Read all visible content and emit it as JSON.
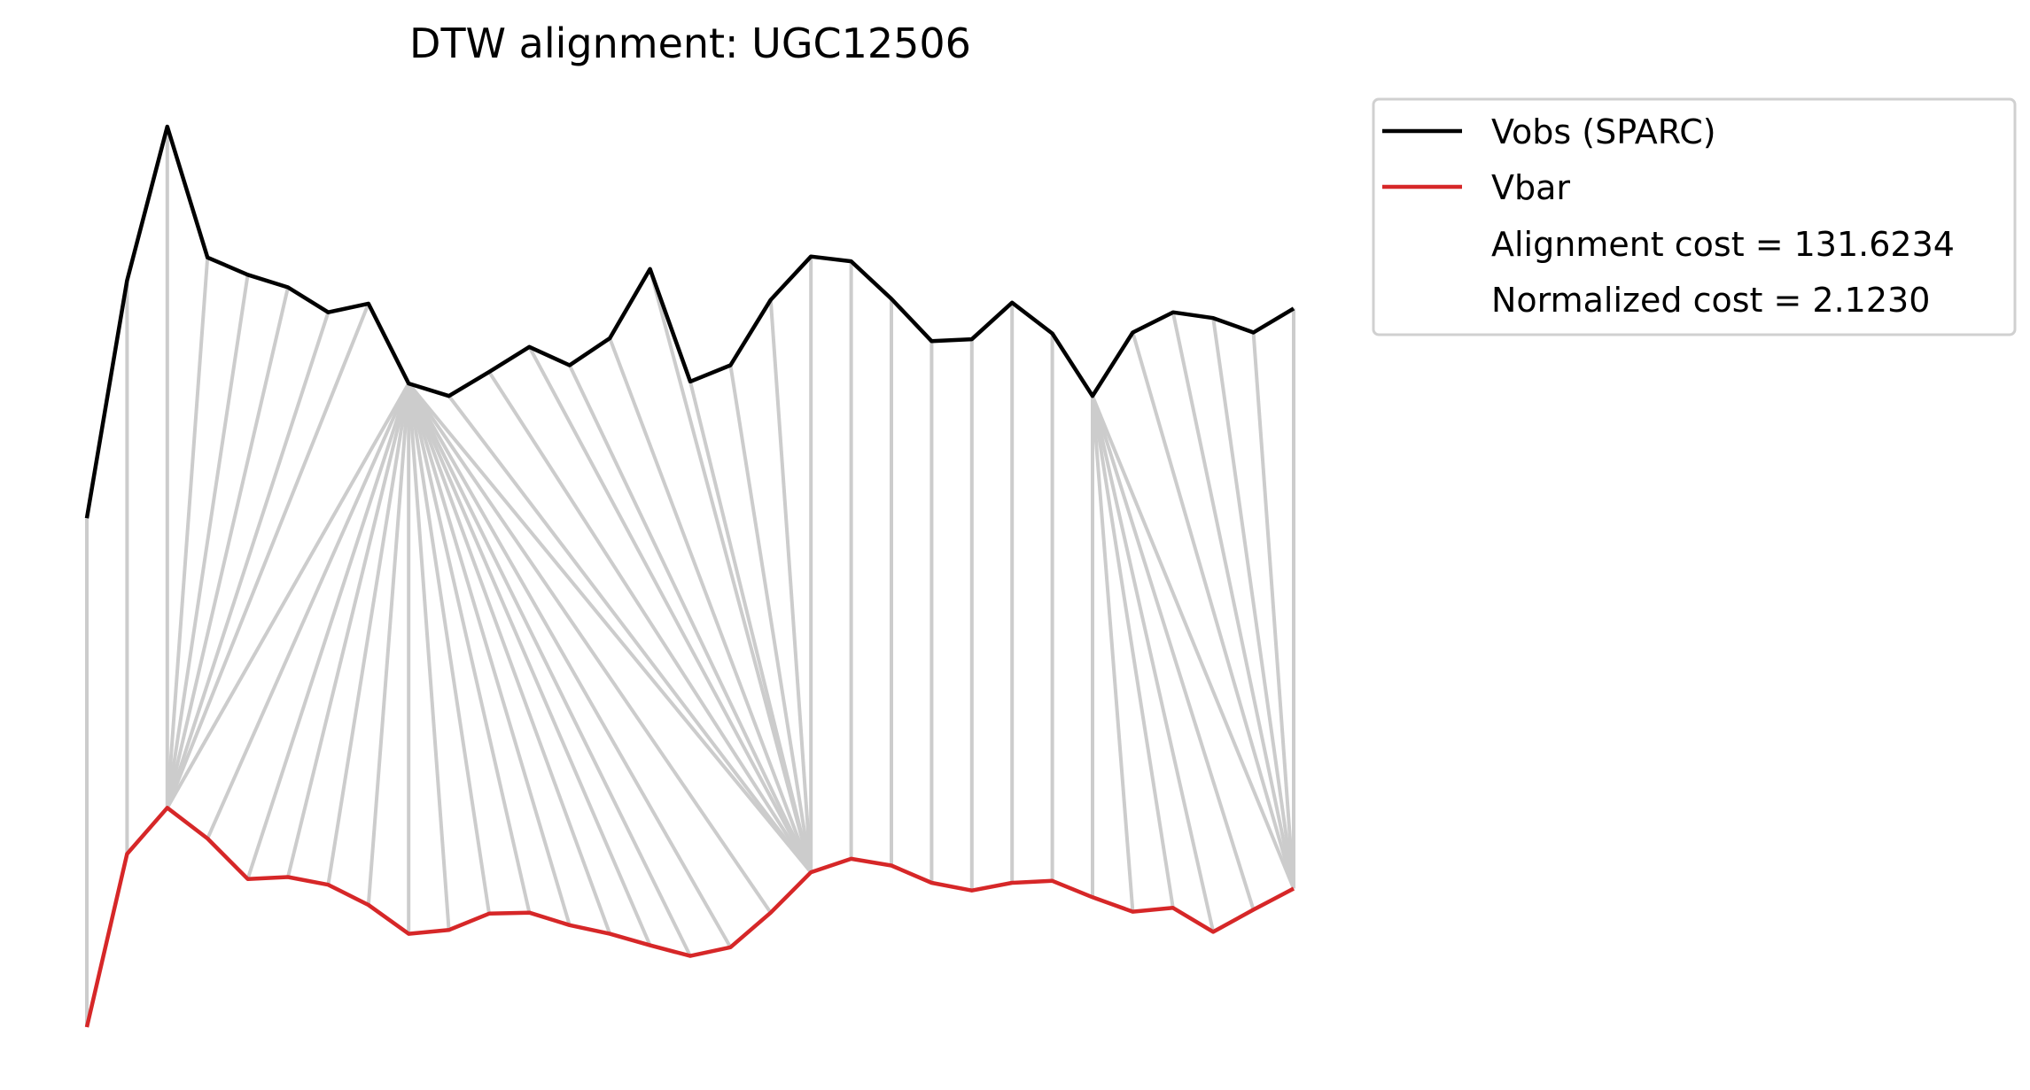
{
  "title": "DTW alignment: UGC12506",
  "legend": {
    "entries": [
      {
        "label": "Vobs (SPARC)",
        "color": "#000000",
        "has_line": true
      },
      {
        "label": "Vbar",
        "color": "#d62728",
        "has_line": true
      },
      {
        "label": "Alignment cost = 131.6234",
        "has_line": false
      },
      {
        "label": "Normalized cost = 2.1230",
        "has_line": false
      }
    ]
  },
  "chart_data": {
    "type": "line",
    "title": "DTW alignment: UGC12506",
    "xlabel": "",
    "ylabel": "",
    "axes_visible": false,
    "grid": false,
    "legend_position": "outside-top-right",
    "x": [
      0,
      1,
      2,
      3,
      4,
      5,
      6,
      7,
      8,
      9,
      10,
      11,
      12,
      13,
      14,
      15,
      16,
      17,
      18,
      19,
      20,
      21,
      22,
      23,
      24,
      25,
      26,
      27,
      28,
      29,
      30
    ],
    "series": [
      {
        "name": "Vobs (SPARC)",
        "color": "#000000",
        "values": [
          5.29,
          7.76,
          9.36,
          8.0,
          7.82,
          7.69,
          7.43,
          7.52,
          6.69,
          6.56,
          6.81,
          7.07,
          6.88,
          7.16,
          7.88,
          6.71,
          6.88,
          7.56,
          8.01,
          7.96,
          7.57,
          7.13,
          7.15,
          7.53,
          7.21,
          6.56,
          7.22,
          7.43,
          7.37,
          7.22,
          7.47
        ]
      },
      {
        "name": "Vbar",
        "color": "#d62728",
        "values": [
          0.0,
          1.8,
          2.28,
          1.96,
          1.54,
          1.56,
          1.48,
          1.27,
          0.97,
          1.01,
          1.18,
          1.19,
          1.06,
          0.97,
          0.85,
          0.74,
          0.83,
          1.19,
          1.61,
          1.75,
          1.68,
          1.5,
          1.42,
          1.5,
          1.52,
          1.35,
          1.2,
          1.24,
          0.99,
          1.22,
          1.44
        ]
      }
    ],
    "alignment_color": "#cccccc",
    "alignment_path": [
      [
        0,
        0
      ],
      [
        1,
        1
      ],
      [
        2,
        2
      ],
      [
        3,
        2
      ],
      [
        4,
        2
      ],
      [
        5,
        2
      ],
      [
        6,
        2
      ],
      [
        7,
        2
      ],
      [
        8,
        2
      ],
      [
        8,
        3
      ],
      [
        8,
        4
      ],
      [
        8,
        5
      ],
      [
        8,
        6
      ],
      [
        8,
        7
      ],
      [
        8,
        8
      ],
      [
        8,
        9
      ],
      [
        8,
        10
      ],
      [
        8,
        11
      ],
      [
        8,
        12
      ],
      [
        8,
        13
      ],
      [
        8,
        14
      ],
      [
        8,
        15
      ],
      [
        8,
        16
      ],
      [
        8,
        17
      ],
      [
        8,
        18
      ],
      [
        9,
        18
      ],
      [
        10,
        18
      ],
      [
        11,
        18
      ],
      [
        12,
        18
      ],
      [
        13,
        18
      ],
      [
        14,
        18
      ],
      [
        15,
        18
      ],
      [
        16,
        18
      ],
      [
        17,
        18
      ],
      [
        18,
        18
      ],
      [
        19,
        19
      ],
      [
        20,
        20
      ],
      [
        21,
        21
      ],
      [
        22,
        22
      ],
      [
        23,
        23
      ],
      [
        24,
        24
      ],
      [
        25,
        25
      ],
      [
        25,
        26
      ],
      [
        25,
        27
      ],
      [
        25,
        28
      ],
      [
        25,
        29
      ],
      [
        25,
        30
      ],
      [
        26,
        30
      ],
      [
        27,
        30
      ],
      [
        28,
        30
      ],
      [
        29,
        30
      ],
      [
        30,
        30
      ]
    ]
  }
}
